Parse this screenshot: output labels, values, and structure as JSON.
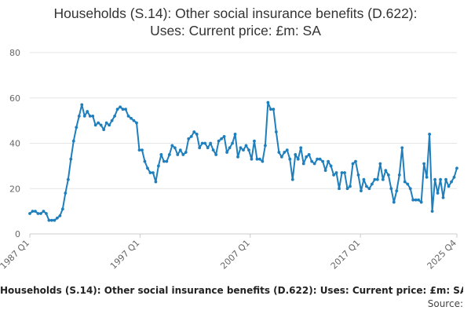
{
  "chart_data": {
    "type": "line",
    "title_line1": "Households (S.14): Other social insurance benefits (D.622):",
    "title_line2": "Uses: Current price: £m: SA",
    "xlabel": "",
    "ylabel": "",
    "ylim": [
      0,
      80
    ],
    "y_ticks": [
      "0",
      "20",
      "40",
      "60",
      "80"
    ],
    "x_tick_labels": [
      "1987 Q1",
      "1997 Q1",
      "2007 Q1",
      "2017 Q1",
      "2025 Q4"
    ],
    "x_start": "1987 Q1",
    "x_end": "2025 Q4",
    "series": [
      {
        "name": "Households (S.14): Other social insurance benefits (D.622): Uses: Current price: £m: SA",
        "color": "#1f7fbd",
        "values": [
          9,
          10,
          10,
          9,
          9,
          10,
          9,
          6,
          6,
          6,
          7,
          8,
          11,
          18,
          24,
          33,
          41,
          47,
          52,
          57,
          52,
          54,
          52,
          52,
          48,
          49,
          48,
          46,
          49,
          48,
          50,
          52,
          55,
          56,
          55,
          55,
          52,
          51,
          50,
          49,
          37,
          37,
          32,
          29,
          27,
          27,
          23,
          30,
          35,
          32,
          32,
          35,
          39,
          38,
          35,
          37,
          35,
          36,
          42,
          43,
          45,
          44,
          38,
          40,
          40,
          38,
          40,
          37,
          35,
          41,
          42,
          43,
          36,
          38,
          40,
          44,
          34,
          38,
          37,
          39,
          37,
          33,
          41,
          33,
          33,
          32,
          39,
          58,
          55,
          55,
          45,
          36,
          34,
          36,
          37,
          33,
          24,
          35,
          33,
          38,
          31,
          34,
          35,
          32,
          31,
          33,
          33,
          32,
          28,
          32,
          30,
          26,
          27,
          20,
          27,
          27,
          20,
          21,
          31,
          32,
          26,
          19,
          24,
          21,
          20,
          22,
          24,
          24,
          31,
          24,
          28,
          26,
          20,
          14,
          19,
          26,
          38,
          23,
          22,
          20,
          15,
          15,
          15,
          14,
          31,
          25,
          44,
          10,
          24,
          18,
          24,
          16,
          24,
          21,
          23,
          25,
          29
        ]
      }
    ]
  },
  "caption": {
    "title": "Households (S.14): Other social insurance benefits (D.622): Uses: Current price: £m: SA",
    "source_label": "Source:"
  }
}
